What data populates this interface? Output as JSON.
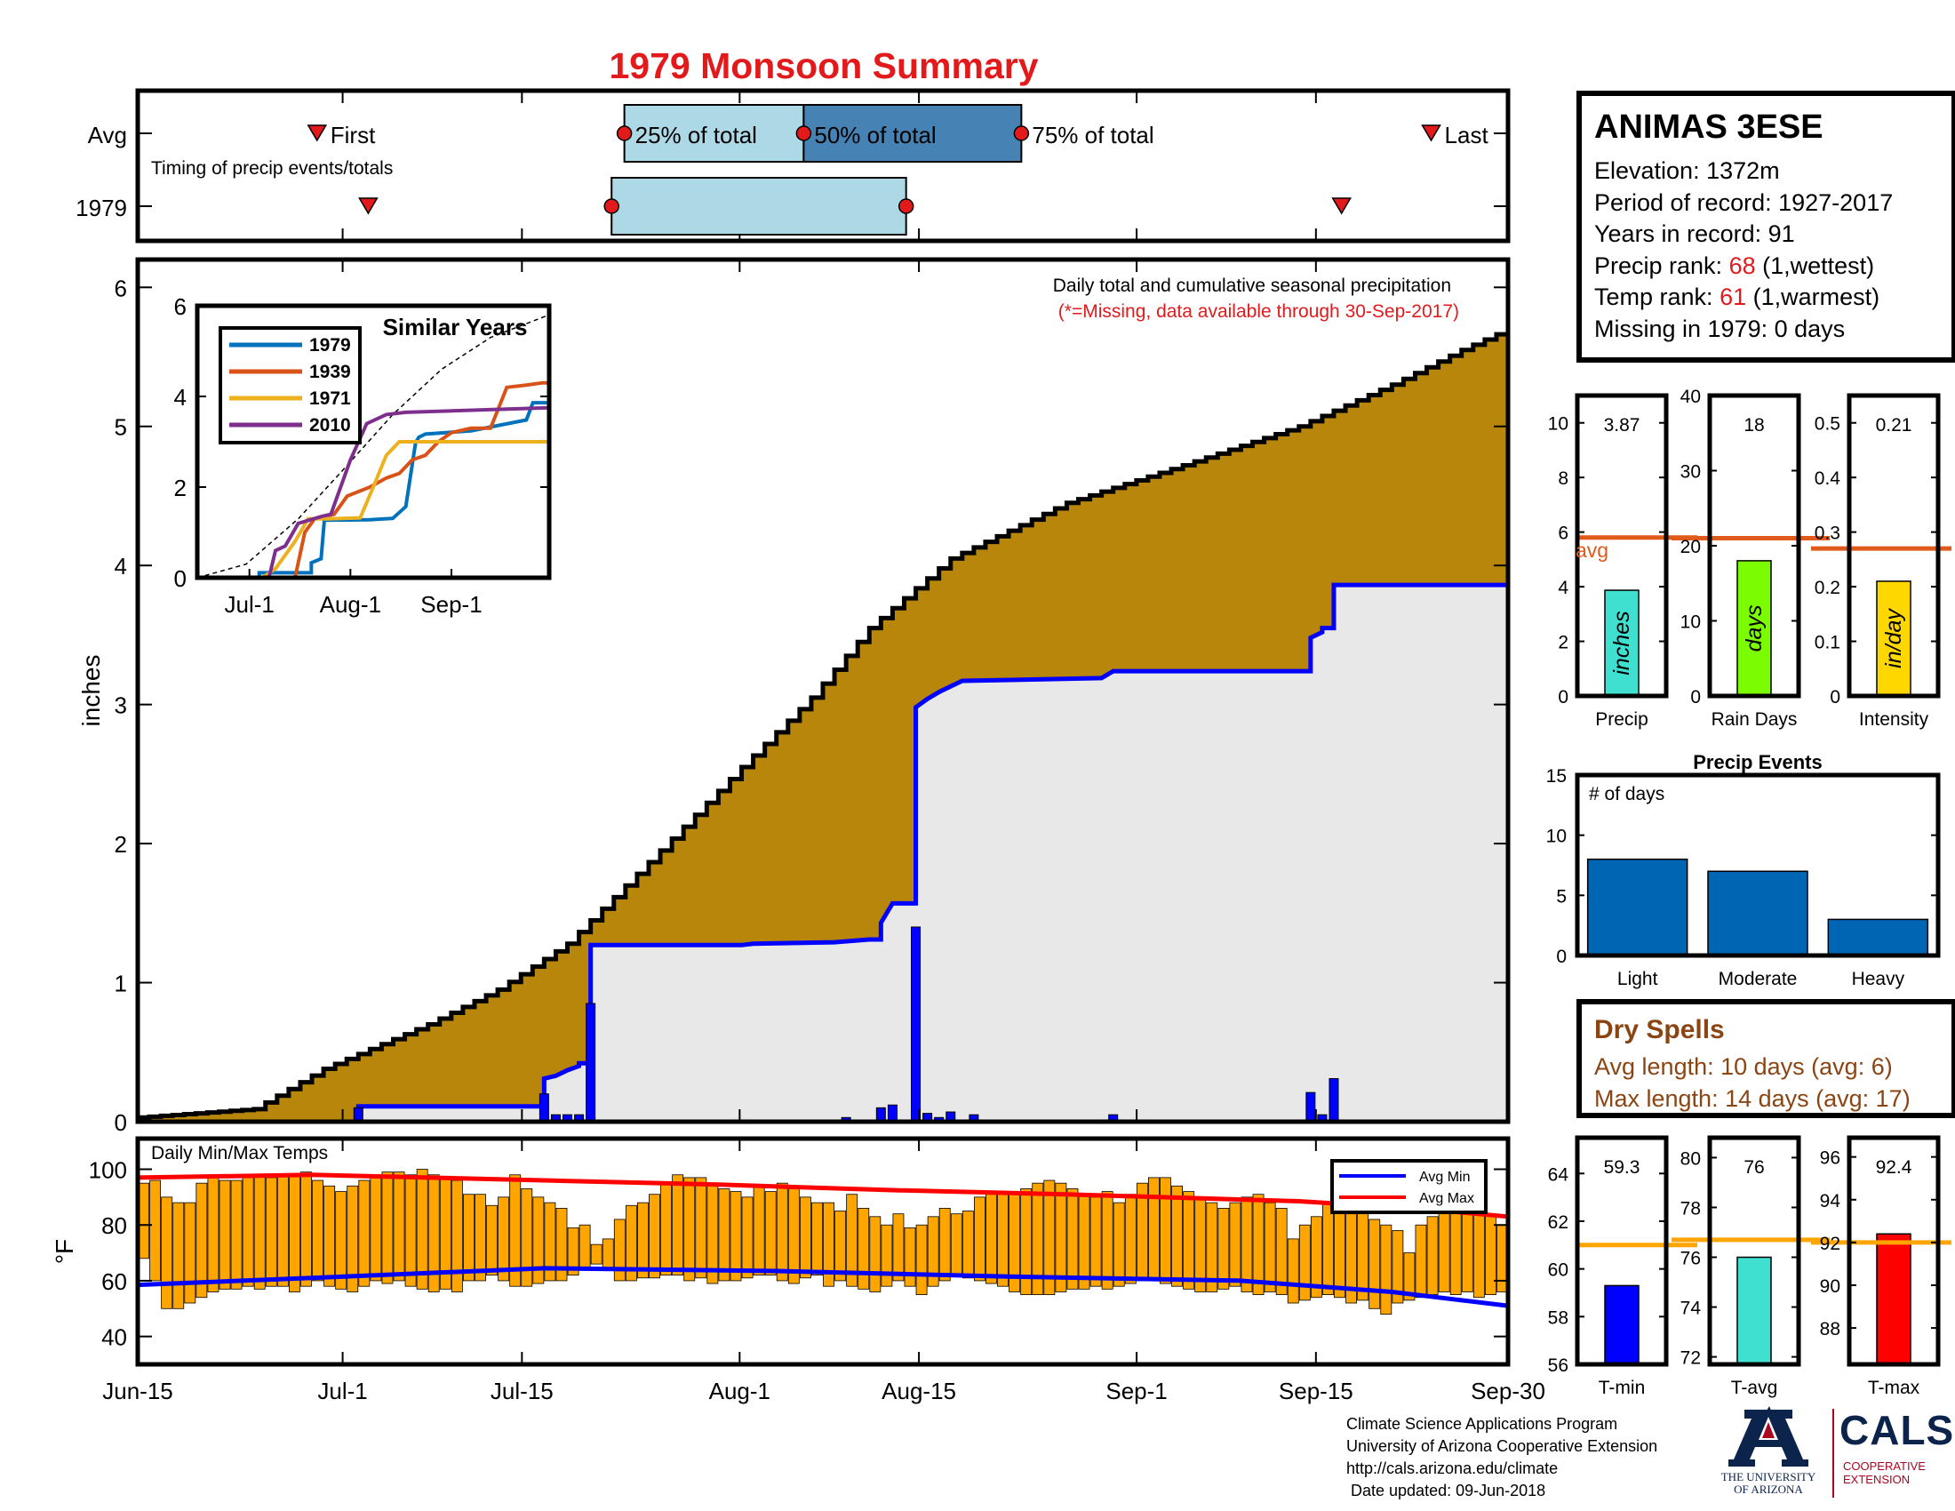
{
  "title": "1979 Monsoon Summary",
  "station": {
    "name": "ANIMAS 3ESE",
    "elevation_label": "Elevation: 1372m",
    "period_label": "Period of record: 1927-2017",
    "years_label": "Years in record: 91",
    "precip_rank_prefix": "Precip rank: ",
    "precip_rank": "68",
    "precip_rank_suffix": " (1,wettest)",
    "temp_rank_prefix": "Temp rank: ",
    "temp_rank": "61",
    "temp_rank_suffix": " (1,warmest)",
    "missing_label": "Missing in 1979: 0 days"
  },
  "dry_spells": {
    "title": "Dry Spells",
    "avg_length": "Avg length: 10 days (avg: 6)",
    "max_length": "Max length: 14 days (avg: 17)"
  },
  "footer": {
    "line1": "Climate Science Applications Program",
    "line2": "University of Arizona Cooperative Extension",
    "line3": "http://cals.arizona.edu/climate",
    "line4": " Date updated: 09-Jun-2018"
  },
  "logos": {
    "ua_line1": "THE UNIVERSITY",
    "ua_line2": "OF ARIZONA",
    "cals": "CALS",
    "cals_sub1": "COOPERATIVE",
    "cals_sub2": "EXTENSION"
  },
  "colors": {
    "title": "#e31a1c",
    "cumulative_fill": "#b8860b",
    "this_year_fill": "#e8e8e8",
    "this_year_line": "#0000ff",
    "daily_bar": "#0000ff",
    "temp_bar": "#ffa500",
    "avg_min_line": "#0000ff",
    "avg_max_line": "#ff0000",
    "avg_marker_line": "#e05a1c",
    "precip_bar": "#40e0d0",
    "rain_days_bar": "#7cfc00",
    "intensity_bar": "#ffd700",
    "events_bar": "#0066b3",
    "tmin_bar": "#0000ff",
    "tavg_bar": "#40e0d0",
    "tmax_bar": "#ff0000",
    "avg_temp_line": "#ffa500",
    "quartile_light": "#add8e6",
    "quartile_dark": "#4682b4",
    "marker_red": "#e31a1c"
  },
  "chart_data": [
    {
      "id": "timing",
      "type": "timeline",
      "row_labels": [
        "Avg",
        "1979"
      ],
      "annotation": "Timing of precip events/totals",
      "labels": {
        "first": "First",
        "last": "Last",
        "q25": "25% of total",
        "q50": "50% of total",
        "q75": "75% of total"
      },
      "avg": {
        "first": "Jun-29",
        "q25": "Jul-23",
        "q50": "Aug-6",
        "q75": "Aug-23",
        "last": "Sep-24"
      },
      "y1979": {
        "first": "Jul-3",
        "q25": "Jul-22",
        "q75": "Aug-14",
        "last": "Sep-17"
      }
    },
    {
      "id": "precip",
      "type": "area",
      "ylabel": "inches",
      "ylim": [
        0,
        6.2
      ],
      "yticks": [
        0,
        1,
        2,
        3,
        4,
        5,
        6
      ],
      "xticks": [
        "Jun-15",
        "Jul-1",
        "Jul-15",
        "Aug-1",
        "Aug-15",
        "Sep-1",
        "Sep-15",
        "Sep-30"
      ],
      "note1": "Daily total and cumulative seasonal precipitation",
      "note2": "(*=Missing, data available through 30-Sep-2017)",
      "avg_cumulative": [
        [
          0,
          0.03
        ],
        [
          10,
          0.09
        ],
        [
          16,
          0.38
        ],
        [
          25,
          0.7
        ],
        [
          31,
          0.95
        ],
        [
          37,
          1.28
        ],
        [
          45,
          1.95
        ],
        [
          52,
          2.55
        ],
        [
          58,
          3.05
        ],
        [
          63,
          3.55
        ],
        [
          70,
          4.05
        ],
        [
          80,
          4.45
        ],
        [
          90,
          4.72
        ],
        [
          100,
          5.0
        ],
        [
          108,
          5.3
        ],
        [
          114,
          5.55
        ],
        [
          118,
          5.7
        ]
      ],
      "cumulative_1979": [
        [
          0,
          0
        ],
        [
          19,
          0
        ],
        [
          19,
          0.11
        ],
        [
          35,
          0.11
        ],
        [
          35,
          0.31
        ],
        [
          36,
          0.33
        ],
        [
          37,
          0.37
        ],
        [
          38,
          0.4
        ],
        [
          38,
          0.42
        ],
        [
          39,
          0.42
        ],
        [
          39,
          1.27
        ],
        [
          52,
          1.27
        ],
        [
          53,
          1.28
        ],
        [
          60,
          1.29
        ],
        [
          63,
          1.31
        ],
        [
          64,
          1.31
        ],
        [
          64,
          1.43
        ],
        [
          65,
          1.57
        ],
        [
          67,
          1.57
        ],
        [
          67,
          2.98
        ],
        [
          68,
          3.04
        ],
        [
          69,
          3.09
        ],
        [
          70,
          3.13
        ],
        [
          71,
          3.17
        ],
        [
          83,
          3.19
        ],
        [
          84,
          3.24
        ],
        [
          100,
          3.24
        ],
        [
          100,
          3.24
        ],
        [
          101,
          3.24
        ],
        [
          101,
          3.48
        ],
        [
          102,
          3.52
        ],
        [
          102,
          3.55
        ],
        [
          103,
          3.55
        ],
        [
          103,
          3.86
        ],
        [
          118,
          3.86
        ]
      ],
      "daily_bars": [
        [
          19,
          0.1
        ],
        [
          35,
          0.2
        ],
        [
          36,
          0.05
        ],
        [
          37,
          0.05
        ],
        [
          38,
          0.05
        ],
        [
          39,
          0.85
        ],
        [
          61,
          0.03
        ],
        [
          64,
          0.1
        ],
        [
          65,
          0.12
        ],
        [
          67,
          1.4
        ],
        [
          68,
          0.06
        ],
        [
          69,
          0.03
        ],
        [
          70,
          0.07
        ],
        [
          72,
          0.05
        ],
        [
          84,
          0.05
        ],
        [
          101,
          0.21
        ],
        [
          102,
          0.05
        ],
        [
          103,
          0.31
        ]
      ],
      "inset": {
        "title": "Similar Years",
        "ylim": [
          0,
          6
        ],
        "yticks": [
          0,
          2,
          4,
          6
        ],
        "xticks": [
          "Jul-1",
          "Aug-1",
          "Sep-1"
        ],
        "series": [
          {
            "name": "1979",
            "color": "#0072bd",
            "points": [
              [
                0,
                0
              ],
              [
                19,
                0
              ],
              [
                19,
                0.11
              ],
              [
                35,
                0.11
              ],
              [
                35,
                0.33
              ],
              [
                38,
                0.42
              ],
              [
                39,
                1.27
              ],
              [
                53,
                1.28
              ],
              [
                60,
                1.31
              ],
              [
                64,
                1.57
              ],
              [
                67,
                2.98
              ],
              [
                68,
                3.1
              ],
              [
                70,
                3.17
              ],
              [
                84,
                3.24
              ],
              [
                101,
                3.48
              ],
              [
                103,
                3.86
              ],
              [
                108,
                3.86
              ]
            ]
          },
          {
            "name": "1939",
            "color": "#d95319",
            "points": [
              [
                0,
                0
              ],
              [
                30,
                0
              ],
              [
                33,
                1.0
              ],
              [
                36,
                1.3
              ],
              [
                42,
                1.4
              ],
              [
                46,
                1.8
              ],
              [
                53,
                2.0
              ],
              [
                58,
                2.2
              ],
              [
                62,
                2.3
              ],
              [
                66,
                2.6
              ],
              [
                70,
                2.7
              ],
              [
                74,
                3.0
              ],
              [
                78,
                3.2
              ],
              [
                84,
                3.3
              ],
              [
                90,
                3.3
              ],
              [
                95,
                4.2
              ],
              [
                101,
                4.25
              ],
              [
                106,
                4.3
              ],
              [
                108,
                4.3
              ]
            ]
          },
          {
            "name": "1971",
            "color": "#edb120",
            "points": [
              [
                0,
                0
              ],
              [
                20,
                0
              ],
              [
                24,
                0.2
              ],
              [
                28,
                0.6
              ],
              [
                30,
                0.8
              ],
              [
                34,
                1.3
              ],
              [
                40,
                1.3
              ],
              [
                50,
                1.32
              ],
              [
                54,
                2.0
              ],
              [
                58,
                2.7
              ],
              [
                62,
                3.0
              ],
              [
                108,
                3.0
              ]
            ]
          },
          {
            "name": "2010",
            "color": "#7e2f8e",
            "points": [
              [
                0,
                0
              ],
              [
                22,
                0
              ],
              [
                24,
                0.6
              ],
              [
                27,
                0.7
              ],
              [
                31,
                1.2
              ],
              [
                38,
                1.35
              ],
              [
                41,
                1.4
              ],
              [
                47,
                2.6
              ],
              [
                52,
                3.4
              ],
              [
                58,
                3.6
              ],
              [
                64,
                3.65
              ],
              [
                108,
                3.75
              ]
            ]
          }
        ],
        "avg_line": [
          [
            0,
            0
          ],
          [
            15,
            0.3
          ],
          [
            31,
            1.3
          ],
          [
            45,
            2.4
          ],
          [
            60,
            3.6
          ],
          [
            75,
            4.6
          ],
          [
            90,
            5.3
          ],
          [
            108,
            5.8
          ]
        ]
      }
    },
    {
      "id": "temps",
      "type": "bar",
      "annotation": "Daily Min/Max Temps",
      "ylabel": "°F",
      "ylim": [
        30,
        111
      ],
      "yticks": [
        40,
        60,
        80,
        100
      ],
      "legend": [
        "Avg Min",
        "Avg Max"
      ],
      "avg_min": [
        [
          0,
          58.5
        ],
        [
          15,
          61
        ],
        [
          35,
          64.5
        ],
        [
          55,
          63.5
        ],
        [
          75,
          61.5
        ],
        [
          95,
          60
        ],
        [
          108,
          56
        ],
        [
          118,
          51
        ]
      ],
      "avg_max": [
        [
          0,
          97
        ],
        [
          15,
          98
        ],
        [
          35,
          96
        ],
        [
          50,
          94.5
        ],
        [
          65,
          92.5
        ],
        [
          80,
          91
        ],
        [
          100,
          88.5
        ],
        [
          110,
          86
        ],
        [
          118,
          83
        ]
      ],
      "daily_max_f": [
        95,
        96,
        90,
        88,
        88,
        95,
        98,
        96,
        96,
        97,
        98,
        97,
        98,
        98,
        99,
        96,
        94,
        92,
        94,
        96,
        97,
        99,
        99,
        98,
        100,
        98,
        97,
        96,
        91,
        91,
        87,
        90,
        98,
        93,
        90,
        88,
        86,
        79,
        80,
        73,
        75,
        82,
        87,
        88,
        91,
        95,
        98,
        97,
        97,
        95,
        93,
        92,
        90,
        94,
        92,
        95,
        93,
        90,
        88,
        88,
        85,
        91,
        86,
        83,
        80,
        84,
        79,
        80,
        83,
        86,
        84,
        85,
        90,
        91,
        92,
        92,
        93,
        95,
        96,
        95,
        93,
        91,
        90,
        92,
        88,
        91,
        95,
        97,
        97,
        94,
        92,
        90,
        88,
        86,
        88,
        90,
        91,
        88,
        86,
        75,
        80,
        83,
        88,
        90,
        84,
        88,
        82,
        80,
        78,
        70,
        80,
        83,
        87,
        90,
        88,
        86,
        84,
        80
      ],
      "daily_min_f": [
        68,
        60,
        50,
        50,
        52,
        54,
        56,
        57,
        57,
        58,
        57,
        58,
        58,
        56,
        58,
        60,
        58,
        57,
        56,
        58,
        60,
        59,
        60,
        58,
        57,
        56,
        57,
        56,
        60,
        60,
        62,
        60,
        58,
        58,
        59,
        60,
        60,
        62,
        64,
        66,
        64,
        60,
        60,
        61,
        61,
        62,
        62,
        60,
        61,
        59,
        60,
        60,
        61,
        62,
        62,
        60,
        59,
        61,
        62,
        58,
        60,
        58,
        57,
        56,
        58,
        60,
        58,
        55,
        58,
        60,
        62,
        61,
        60,
        59,
        58,
        56,
        55,
        55,
        55,
        56,
        57,
        57,
        58,
        57,
        58,
        59,
        60,
        60,
        59,
        58,
        57,
        56,
        56,
        57,
        58,
        56,
        55,
        56,
        55,
        52,
        53,
        54,
        55,
        54,
        52,
        53,
        50,
        48,
        52,
        53,
        54,
        55,
        56,
        55,
        56,
        54,
        55,
        56
      ]
    },
    {
      "id": "precip_total",
      "type": "bar",
      "label": "Precip",
      "value": 3.87,
      "value_label": "3.87",
      "avg": 5.8,
      "ylim": [
        0,
        11
      ],
      "yticks": [
        0,
        2,
        4,
        6,
        8,
        10
      ],
      "bar_text": "inches",
      "avg_text": "avg"
    },
    {
      "id": "rain_days",
      "type": "bar",
      "label": "Rain Days",
      "value": 18,
      "value_label": "18",
      "avg": 21,
      "ylim": [
        0,
        40
      ],
      "yticks": [
        0,
        10,
        20,
        30,
        40
      ],
      "bar_text": "days"
    },
    {
      "id": "intensity",
      "type": "bar",
      "label": "Intensity",
      "value": 0.21,
      "value_label": "0.21",
      "avg": 0.27,
      "ylim": [
        0,
        0.55
      ],
      "yticks": [
        0,
        0.1,
        0.2,
        0.3,
        0.4,
        0.5
      ],
      "bar_text": "in/day"
    },
    {
      "id": "events",
      "type": "bar",
      "title": "Precip Events",
      "annotation": "# of days",
      "categories": [
        "Light",
        "Moderate",
        "Heavy"
      ],
      "values": [
        8,
        7,
        3
      ],
      "ylim": [
        0,
        15
      ],
      "yticks": [
        0,
        5,
        10,
        15
      ]
    },
    {
      "id": "tmin",
      "type": "bar",
      "label": "T-min",
      "value": 59.3,
      "value_label": "59.3",
      "avg": 61,
      "ylim": [
        56,
        65.5
      ],
      "yticks": [
        56,
        58,
        60,
        62,
        64
      ]
    },
    {
      "id": "tavg",
      "type": "bar",
      "label": "T-avg",
      "value": 76,
      "value_label": "76",
      "avg": 76.7,
      "ylim": [
        71.7,
        80.8
      ],
      "yticks": [
        72,
        74,
        76,
        78,
        80
      ]
    },
    {
      "id": "tmax",
      "type": "bar",
      "label": "T-max",
      "value": 92.4,
      "value_label": "92.4",
      "avg": 92,
      "ylim": [
        86.3,
        96.9
      ],
      "yticks": [
        88,
        90,
        92,
        94,
        96
      ]
    }
  ]
}
